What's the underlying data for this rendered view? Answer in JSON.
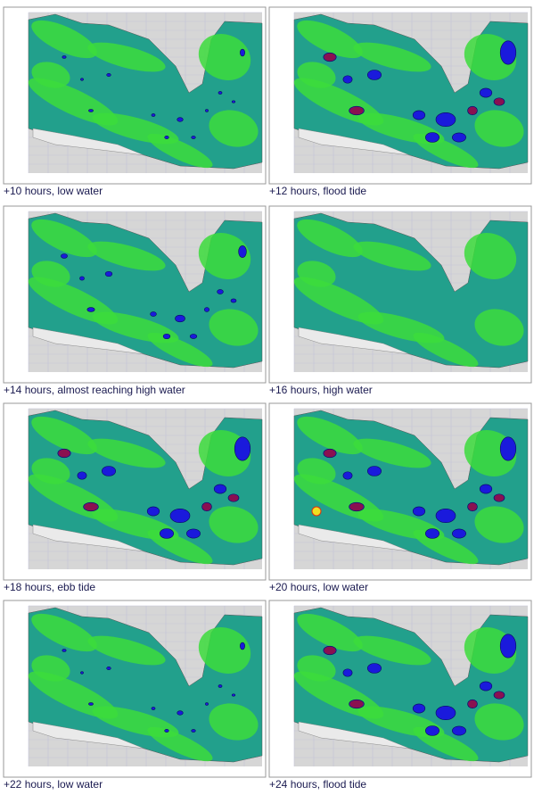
{
  "panels": [
    {
      "caption": "+10 hours, low water"
    },
    {
      "caption": "+12 hours, flood tide"
    },
    {
      "caption": "+14 hours, almost reaching high water"
    },
    {
      "caption": "+16 hours, high water"
    },
    {
      "caption": "+18 hours, ebb tide"
    },
    {
      "caption": "+20 hours, low water"
    },
    {
      "caption": "+22 hours, low water"
    },
    {
      "caption": "+24 hours, flood tide"
    }
  ]
}
